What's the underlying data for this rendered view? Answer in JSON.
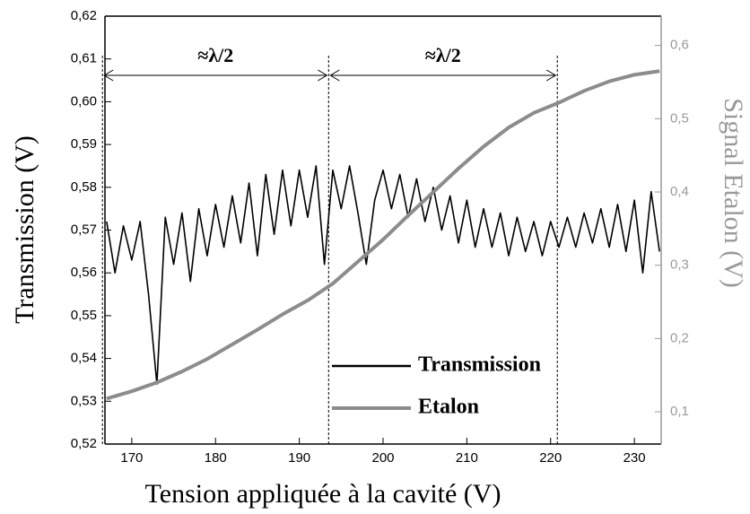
{
  "chart_data": {
    "type": "line",
    "xlabel": "Tension appliquée à la cavité (V)",
    "ylabel": "Transmission (V)",
    "y2label": "Signal Etalon (V)",
    "xlim": [
      166.8,
      233.2
    ],
    "xticks": [
      170,
      180,
      190,
      200,
      210,
      220,
      230
    ],
    "ylim": [
      0.52,
      0.62
    ],
    "yticks": [
      {
        "value": 0.52,
        "label": "0,52"
      },
      {
        "value": 0.53,
        "label": "0,53"
      },
      {
        "value": 0.54,
        "label": "0,54"
      },
      {
        "value": 0.55,
        "label": "0,55"
      },
      {
        "value": 0.56,
        "label": "0,56"
      },
      {
        "value": 0.57,
        "label": "0,57"
      },
      {
        "value": 0.58,
        "label": "0,58"
      },
      {
        "value": 0.59,
        "label": "0,59"
      },
      {
        "value": 0.6,
        "label": "0,60"
      },
      {
        "value": 0.61,
        "label": "0,61"
      },
      {
        "value": 0.62,
        "label": "0,62"
      }
    ],
    "y2lim": [
      0.056,
      0.64
    ],
    "y2ticks": [
      {
        "value": 0.1,
        "label": "0,1"
      },
      {
        "value": 0.2,
        "label": "0,2"
      },
      {
        "value": 0.3,
        "label": "0,3"
      },
      {
        "value": 0.4,
        "label": "0,4"
      },
      {
        "value": 0.5,
        "label": "0,5"
      },
      {
        "value": 0.6,
        "label": "0,6"
      }
    ],
    "vlines": [
      166.5,
      193.5,
      220.8
    ],
    "annotations": [
      "≈λ/2",
      "≈λ/2"
    ],
    "series": [
      {
        "name": "Transmission",
        "color": "#000000",
        "x": [
          167,
          168,
          169,
          170,
          171,
          172,
          173,
          174,
          175,
          176,
          177,
          178,
          179,
          180,
          181,
          182,
          183,
          184,
          185,
          186,
          187,
          188,
          189,
          190,
          191,
          192,
          193,
          194,
          195,
          196,
          197,
          198,
          199,
          200,
          201,
          202,
          203,
          204,
          205,
          206,
          207,
          208,
          209,
          210,
          211,
          212,
          213,
          214,
          215,
          216,
          217,
          218,
          219,
          220,
          221,
          222,
          223,
          224,
          225,
          226,
          227,
          228,
          229,
          230,
          231,
          232,
          233
        ],
        "values": [
          0.572,
          0.56,
          0.571,
          0.563,
          0.572,
          0.555,
          0.534,
          0.573,
          0.562,
          0.574,
          0.558,
          0.575,
          0.564,
          0.576,
          0.566,
          0.578,
          0.567,
          0.581,
          0.564,
          0.583,
          0.569,
          0.584,
          0.571,
          0.584,
          0.573,
          0.585,
          0.562,
          0.584,
          0.575,
          0.585,
          0.574,
          0.562,
          0.577,
          0.584,
          0.575,
          0.583,
          0.573,
          0.582,
          0.572,
          0.58,
          0.57,
          0.578,
          0.567,
          0.577,
          0.566,
          0.575,
          0.566,
          0.574,
          0.564,
          0.573,
          0.565,
          0.572,
          0.564,
          0.572,
          0.566,
          0.573,
          0.566,
          0.574,
          0.567,
          0.575,
          0.566,
          0.576,
          0.565,
          0.577,
          0.56,
          0.579,
          0.565
        ]
      },
      {
        "name": "Etalon",
        "color": "#8c8c8c",
        "axis": "y2",
        "x": [
          167,
          170,
          173,
          176,
          179,
          182,
          185,
          188,
          191,
          194,
          197,
          200,
          203,
          206,
          209,
          212,
          215,
          218,
          221,
          224,
          227,
          230,
          233
        ],
        "values": [
          0.118,
          0.128,
          0.14,
          0.155,
          0.172,
          0.192,
          0.212,
          0.233,
          0.252,
          0.275,
          0.305,
          0.335,
          0.368,
          0.4,
          0.432,
          0.462,
          0.488,
          0.508,
          0.522,
          0.538,
          0.551,
          0.56,
          0.565
        ]
      }
    ]
  }
}
